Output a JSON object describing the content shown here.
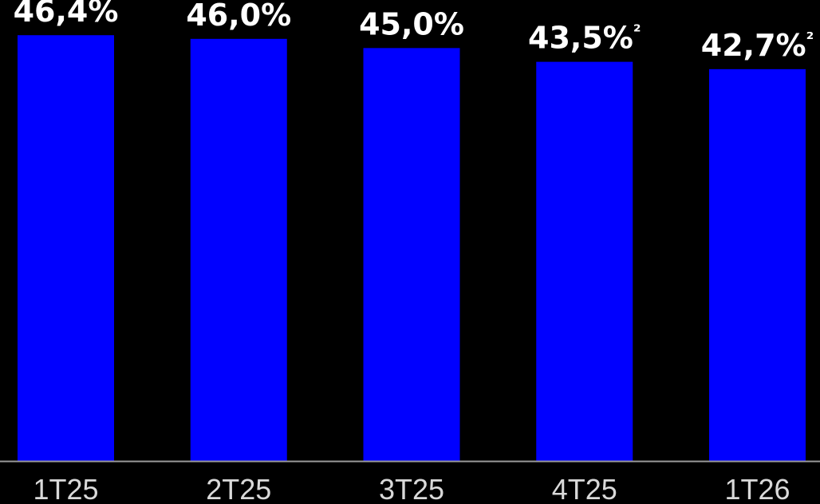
{
  "chart_data": {
    "type": "bar",
    "categories": [
      "1T25",
      "2T25",
      "3T25",
      "4T25",
      "1T26"
    ],
    "values": [
      46.4,
      46.0,
      45.0,
      43.5,
      42.7
    ],
    "data_labels": [
      "46,4%",
      "46,0%",
      "45,0%",
      "43,5%",
      "42,7%"
    ],
    "label_footnotes": [
      "",
      "",
      "",
      "²",
      "²"
    ],
    "unit": "%",
    "ylim": [
      0,
      48.5
    ],
    "grid": false,
    "legend": "none",
    "colors": {
      "bar": "#0000FF",
      "background": "#000000",
      "baseline": "#9a9a9a",
      "value_label": "#FFFFFF",
      "tick_label": "#D9D9D9"
    }
  }
}
